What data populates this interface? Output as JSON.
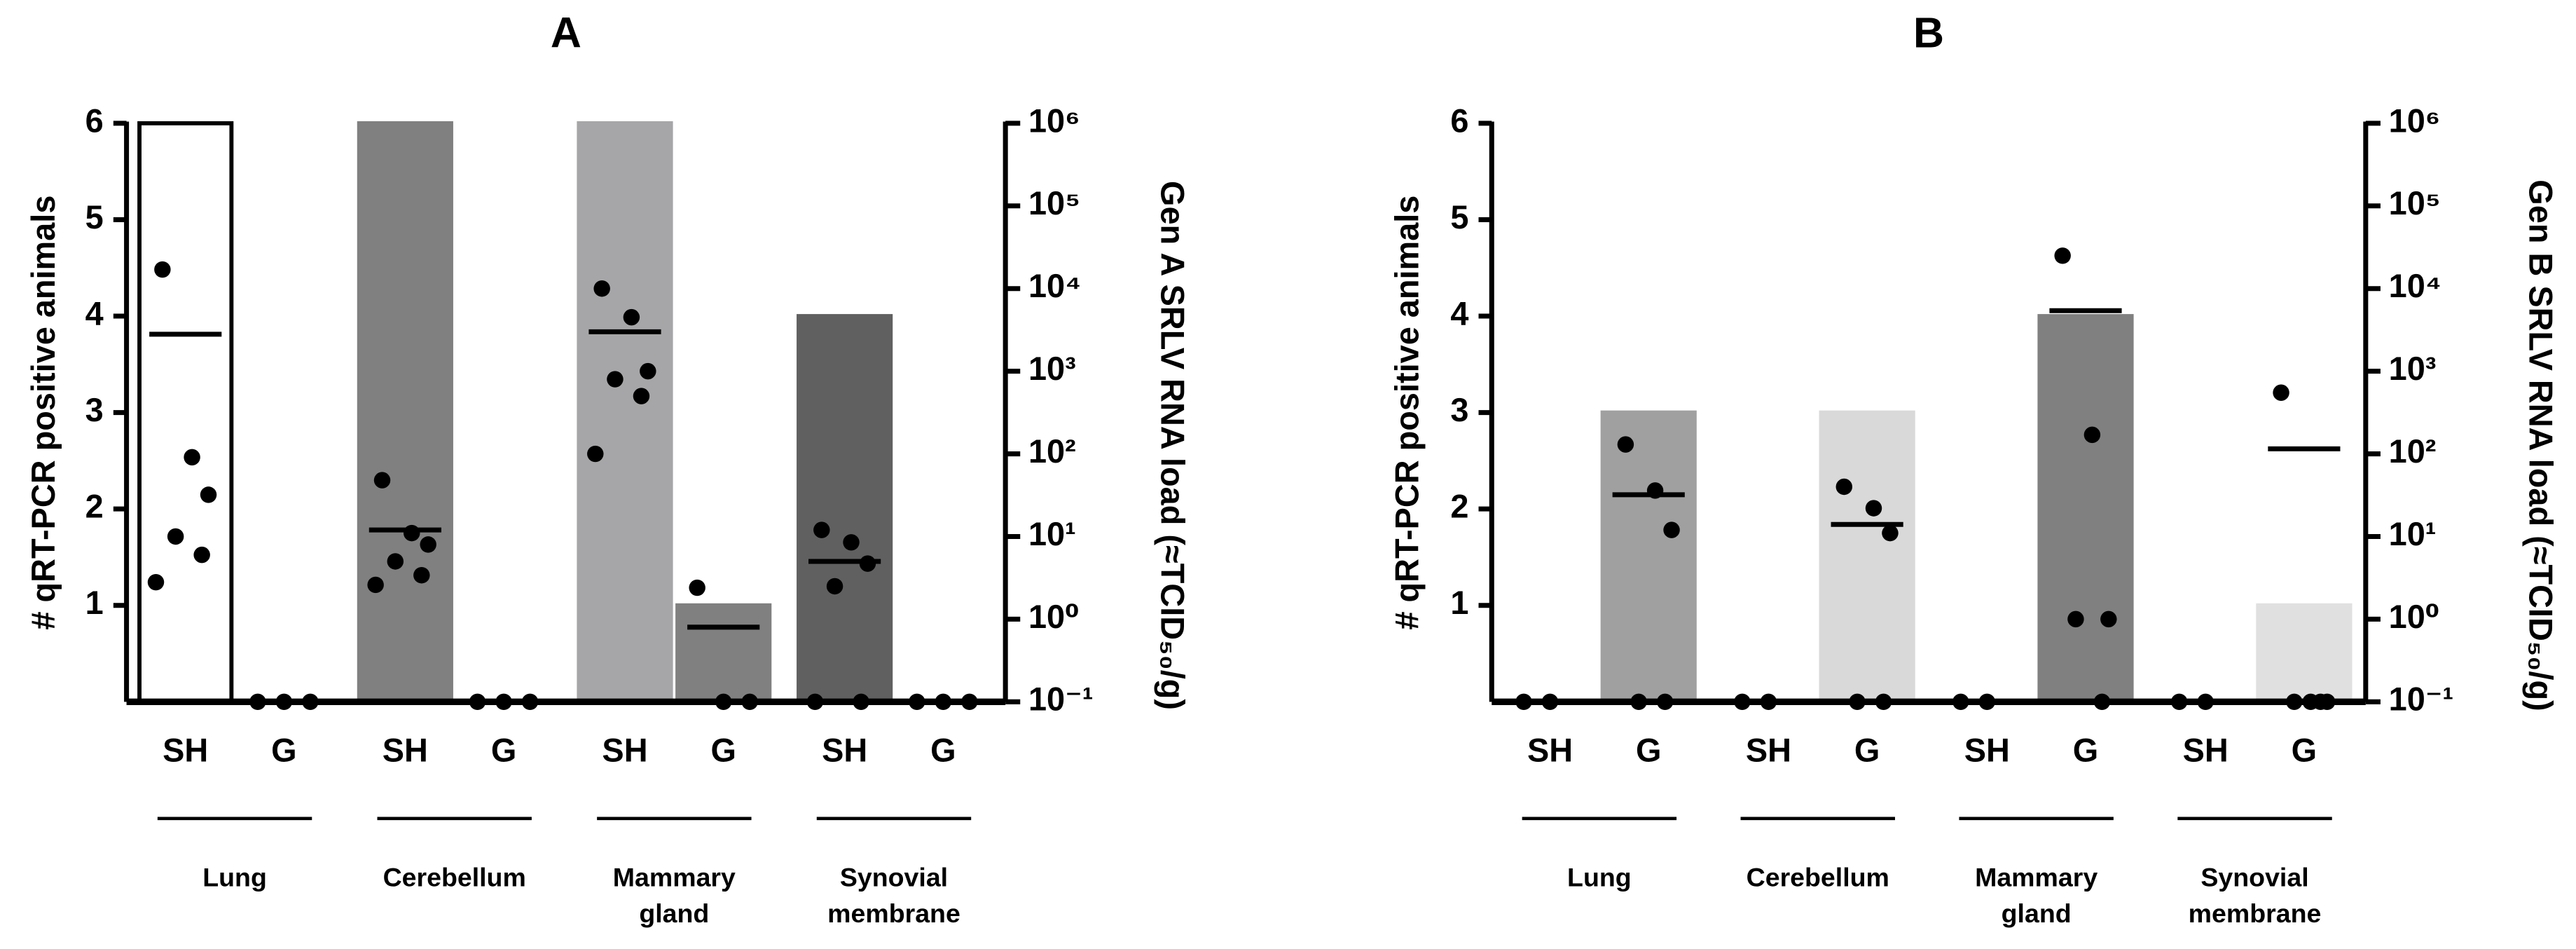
{
  "chart_data": [
    {
      "type": "bar",
      "title": "A",
      "ylabel": "# qRT-PCR positive animals",
      "y2label": "Gen A SRLV RNA load (≈TCID₅₀/g)",
      "categories": [
        "SH",
        "G",
        "SH",
        "G",
        "SH",
        "G",
        "SH",
        "G"
      ],
      "groups": [
        [
          "Lung"
        ],
        [
          "Cerebellum"
        ],
        [
          "Mammary",
          "gland"
        ],
        [
          "Synovial",
          "membrane"
        ]
      ],
      "values": [
        6,
        0,
        6,
        0,
        6,
        1,
        4,
        0
      ],
      "colors": [
        "#ffffff",
        "#808080",
        "#808080",
        "#808080",
        "#a6a6a8",
        "#808080",
        "#606060",
        "#606060"
      ],
      "edgecolors": [
        "#000000",
        "#808080",
        "#808080",
        "#808080",
        "#a6a6a8",
        "#808080",
        "#606060",
        "#606060"
      ],
      "ylim": [
        0,
        6
      ],
      "yticks": [
        1,
        2,
        3,
        4,
        5,
        6
      ],
      "y2lim": [
        0.1,
        1000000
      ],
      "y2log": true,
      "y2ticks": [
        {
          "value": 0.1,
          "label": "10⁻¹"
        },
        {
          "value": 1,
          "label": "10⁰"
        },
        {
          "value": 10,
          "label": "10¹"
        },
        {
          "value": 100,
          "label": "10²"
        },
        {
          "value": 1000,
          "label": "10³"
        },
        {
          "value": 10000,
          "label": "10⁴"
        },
        {
          "value": 100000,
          "label": "10⁵"
        },
        {
          "value": 1000000,
          "label": "10⁶"
        }
      ],
      "dots_axis": "y2",
      "dots": [
        [
          17000,
          91,
          32,
          10,
          6,
          2.8
        ],
        [
          0.1,
          0.1,
          0.1
        ],
        [
          48,
          11,
          8,
          5,
          3.4,
          2.6
        ],
        [
          0.1,
          0.1,
          0.1
        ],
        [
          10000,
          4500,
          1000,
          800,
          500,
          100
        ],
        [
          2.4,
          0.1,
          0.1
        ],
        [
          12,
          8.5,
          4.7,
          2.5,
          0.1,
          0.1
        ],
        [
          0.1,
          0.1,
          0.1
        ]
      ],
      "medians": [
        2800,
        null,
        12,
        null,
        3000,
        0.8,
        5,
        null
      ]
    },
    {
      "type": "bar",
      "title": "B",
      "ylabel": "# qRT-PCR positive animals",
      "y2label": "Gen B SRLV RNA load (≈TCID₅₀/g)",
      "categories": [
        "SH",
        "G",
        "SH",
        "G",
        "SH",
        "G",
        "SH",
        "G"
      ],
      "groups": [
        [
          "Lung"
        ],
        [
          "Cerebellum"
        ],
        [
          "Mammary",
          "gland"
        ],
        [
          "Synovial",
          "membrane"
        ]
      ],
      "values": [
        0,
        3,
        0,
        3,
        0,
        4,
        0,
        1
      ],
      "colors": [
        "#a0a0a0",
        "#a0a0a0",
        "#d9d9d9",
        "#d9d9d9",
        "#808080",
        "#808080",
        "#e0e0e0",
        "#e0e0e0"
      ],
      "edgecolors": [
        "#a0a0a0",
        "#a0a0a0",
        "#d9d9d9",
        "#d9d9d9",
        "#808080",
        "#808080",
        "#e0e0e0",
        "#e0e0e0"
      ],
      "ylim": [
        0,
        6
      ],
      "yticks": [
        1,
        2,
        3,
        4,
        5,
        6
      ],
      "y2lim": [
        0.1,
        1000000
      ],
      "y2log": true,
      "y2ticks": [
        {
          "value": 0.1,
          "label": "10⁻¹"
        },
        {
          "value": 1,
          "label": "10⁰"
        },
        {
          "value": 10,
          "label": "10¹"
        },
        {
          "value": 100,
          "label": "10²"
        },
        {
          "value": 1000,
          "label": "10³"
        },
        {
          "value": 10000,
          "label": "10⁴"
        },
        {
          "value": 100000,
          "label": "10⁵"
        },
        {
          "value": 1000000,
          "label": "10⁶"
        }
      ],
      "dots_axis": "y2",
      "dots": [
        [
          0.1,
          0.1
        ],
        [
          130,
          36,
          12,
          0.1,
          0.1
        ],
        [
          0.1,
          0.1
        ],
        [
          40,
          22,
          11,
          0.1,
          0.1
        ],
        [
          0.1,
          0.1
        ],
        [
          25000,
          170,
          1,
          1,
          0.1
        ],
        [
          0.1,
          0.1
        ],
        [
          550,
          0.1,
          0.1,
          0.1,
          0.1
        ]
      ],
      "medians": [
        null,
        32,
        null,
        14,
        null,
        5400,
        null,
        115
      ]
    }
  ]
}
